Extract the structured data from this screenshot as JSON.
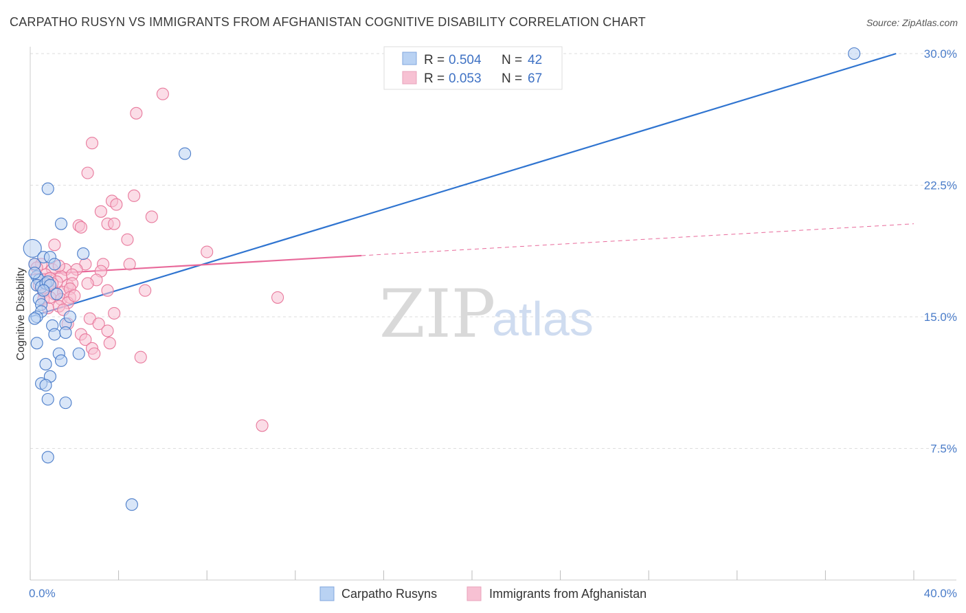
{
  "title": "CARPATHO RUSYN VS IMMIGRANTS FROM AFGHANISTAN COGNITIVE DISABILITY CORRELATION CHART",
  "source": "Source: ZipAtlas.com",
  "watermark": {
    "zip": "ZIP",
    "atlas": "atlas"
  },
  "colors": {
    "blue": "#4a7cc9",
    "blue_fill": "#b9d2f3",
    "blue_line": "#2f74d0",
    "pink": "#e8799c",
    "pink_fill": "#f7c1d3",
    "pink_line": "#e8699a",
    "grid": "#dddddd",
    "axis_label": "#4a7cc9"
  },
  "legend": {
    "r_label": "R =",
    "n_label": "N =",
    "items": [
      {
        "r": "0.504",
        "n": "42"
      },
      {
        "r": "0.053",
        "n": "67"
      }
    ]
  },
  "bottom_legend": {
    "items": [
      "Carpatho Rusyns",
      "Immigrants from Afghanistan"
    ]
  },
  "chart_data": {
    "type": "scatter",
    "title": "CARPATHO RUSYN VS IMMIGRANTS FROM AFGHANISTAN COGNITIVE DISABILITY CORRELATION CHART",
    "xlabel": "",
    "ylabel": "Cognitive Disability",
    "xlim": [
      0,
      40
    ],
    "ylim": [
      0,
      31.5
    ],
    "x_tick_labels": [
      "0.0%",
      "40.0%"
    ],
    "y_ticks": [
      7.5,
      15.0,
      22.5,
      30.0
    ],
    "y_tick_labels": [
      "7.5%",
      "15.0%",
      "22.5%",
      "30.0%"
    ],
    "x_minor_ticks": [
      0,
      4,
      8,
      12,
      16,
      20,
      24,
      28,
      32,
      36,
      40
    ],
    "series": [
      {
        "name": "Carpatho Rusyns",
        "r": 0.504,
        "n": 42,
        "trend": {
          "x0": 0,
          "y0": 15.0,
          "x1": 39.2,
          "y1": 30.0
        },
        "points": [
          [
            0.1,
            18.9
          ],
          [
            0.2,
            18.0
          ],
          [
            0.3,
            17.3
          ],
          [
            0.4,
            17.1
          ],
          [
            0.3,
            16.8
          ],
          [
            0.5,
            16.7
          ],
          [
            0.7,
            16.9
          ],
          [
            0.8,
            17.0
          ],
          [
            0.9,
            16.8
          ],
          [
            0.6,
            18.4
          ],
          [
            0.9,
            18.4
          ],
          [
            1.1,
            18.0
          ],
          [
            0.4,
            16.0
          ],
          [
            0.5,
            15.7
          ],
          [
            0.5,
            15.3
          ],
          [
            0.3,
            15.0
          ],
          [
            0.2,
            14.9
          ],
          [
            1.0,
            14.5
          ],
          [
            1.6,
            14.6
          ],
          [
            1.8,
            15.0
          ],
          [
            1.1,
            14.0
          ],
          [
            1.6,
            14.1
          ],
          [
            0.3,
            13.5
          ],
          [
            1.3,
            12.9
          ],
          [
            1.4,
            12.5
          ],
          [
            0.7,
            12.3
          ],
          [
            2.2,
            12.9
          ],
          [
            0.9,
            11.6
          ],
          [
            0.5,
            11.2
          ],
          [
            0.7,
            11.1
          ],
          [
            0.8,
            10.3
          ],
          [
            1.6,
            10.1
          ],
          [
            0.8,
            7.0
          ],
          [
            4.6,
            4.3
          ],
          [
            0.8,
            22.3
          ],
          [
            1.4,
            20.3
          ],
          [
            2.4,
            18.6
          ],
          [
            7.0,
            24.3
          ],
          [
            37.3,
            30.0
          ],
          [
            0.2,
            17.5
          ],
          [
            0.6,
            16.5
          ],
          [
            1.2,
            16.3
          ]
        ]
      },
      {
        "name": "Immigrants from Afghanistan",
        "r": 0.053,
        "n": 67,
        "trend": {
          "x0": 0,
          "y0": 17.4,
          "x1": 40,
          "y1": 20.3,
          "solid_until": 15.0
        },
        "points": [
          [
            6.0,
            27.7
          ],
          [
            4.8,
            26.6
          ],
          [
            2.8,
            24.9
          ],
          [
            2.6,
            23.2
          ],
          [
            4.7,
            21.9
          ],
          [
            3.7,
            21.6
          ],
          [
            3.9,
            21.4
          ],
          [
            3.2,
            21.0
          ],
          [
            5.5,
            20.7
          ],
          [
            3.5,
            20.3
          ],
          [
            3.8,
            20.3
          ],
          [
            2.2,
            20.2
          ],
          [
            2.3,
            20.1
          ],
          [
            4.4,
            19.4
          ],
          [
            1.1,
            19.1
          ],
          [
            8.0,
            18.7
          ],
          [
            0.2,
            18.0
          ],
          [
            0.5,
            18.0
          ],
          [
            2.5,
            18.0
          ],
          [
            3.3,
            18.0
          ],
          [
            4.5,
            18.0
          ],
          [
            1.0,
            17.7
          ],
          [
            1.6,
            17.7
          ],
          [
            2.1,
            17.7
          ],
          [
            0.7,
            17.4
          ],
          [
            1.4,
            17.3
          ],
          [
            1.9,
            17.4
          ],
          [
            3.2,
            17.6
          ],
          [
            0.9,
            17.2
          ],
          [
            1.2,
            17.0
          ],
          [
            3.0,
            17.1
          ],
          [
            0.4,
            16.8
          ],
          [
            0.8,
            16.7
          ],
          [
            1.7,
            16.8
          ],
          [
            1.9,
            16.9
          ],
          [
            2.6,
            16.9
          ],
          [
            0.6,
            16.4
          ],
          [
            1.1,
            16.3
          ],
          [
            1.5,
            16.4
          ],
          [
            1.8,
            16.6
          ],
          [
            3.5,
            16.5
          ],
          [
            5.2,
            16.5
          ],
          [
            0.6,
            16.0
          ],
          [
            1.4,
            16.0
          ],
          [
            1.8,
            16.1
          ],
          [
            1.7,
            15.8
          ],
          [
            1.3,
            15.6
          ],
          [
            0.8,
            15.5
          ],
          [
            1.5,
            15.4
          ],
          [
            3.8,
            15.2
          ],
          [
            2.7,
            14.9
          ],
          [
            3.1,
            14.6
          ],
          [
            1.7,
            14.6
          ],
          [
            3.5,
            14.2
          ],
          [
            2.3,
            14.0
          ],
          [
            2.5,
            13.7
          ],
          [
            3.6,
            13.5
          ],
          [
            2.8,
            13.2
          ],
          [
            2.9,
            12.9
          ],
          [
            5.0,
            12.7
          ],
          [
            11.2,
            16.1
          ],
          [
            10.5,
            8.8
          ],
          [
            0.3,
            17.8
          ],
          [
            1.0,
            16.9
          ],
          [
            2.0,
            16.2
          ],
          [
            0.9,
            16.1
          ],
          [
            1.3,
            17.9
          ]
        ]
      }
    ]
  }
}
